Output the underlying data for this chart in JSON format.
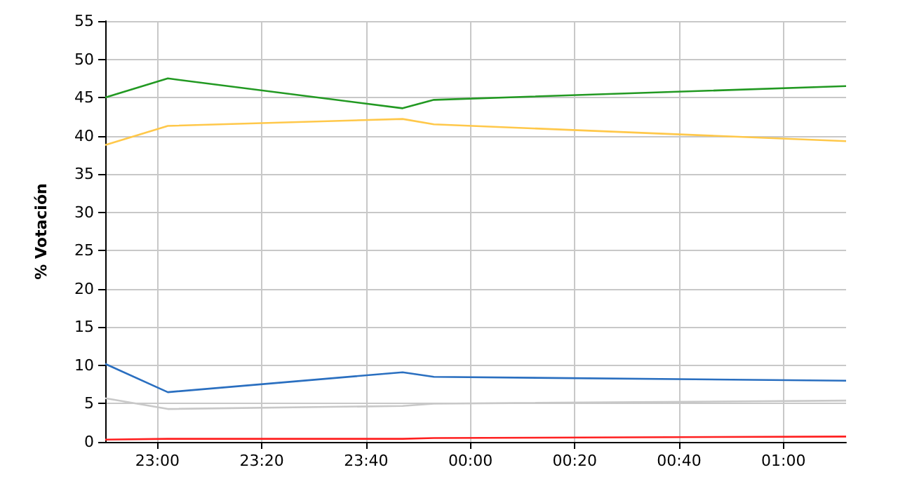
{
  "chart_data": {
    "type": "line",
    "ylabel": "% Votación",
    "x": [
      "2000-01-01T22:50",
      "2000-01-01T23:02",
      "2000-01-01T23:47",
      "2000-01-01T23:53",
      "2000-01-02T01:12"
    ],
    "xlim": [
      "2000-01-01T22:50",
      "2000-01-02T01:12"
    ],
    "xticks": [
      {
        "value": "2000-01-01T23:00",
        "label": "23:00"
      },
      {
        "value": "2000-01-01T23:20",
        "label": "23:20"
      },
      {
        "value": "2000-01-01T23:40",
        "label": "23:40"
      },
      {
        "value": "2000-01-02T00:00",
        "label": "00:00"
      },
      {
        "value": "2000-01-02T00:20",
        "label": "00:20"
      },
      {
        "value": "2000-01-02T00:40",
        "label": "00:40"
      },
      {
        "value": "2000-01-02T01:00",
        "label": "01:00"
      }
    ],
    "ylim": [
      0,
      55
    ],
    "yticks": [
      0,
      5,
      10,
      15,
      20,
      25,
      30,
      35,
      40,
      45,
      50,
      55
    ],
    "grid": true,
    "marker": "none",
    "series": [
      {
        "color": "#229922",
        "values": [
          45,
          47.5,
          43.6,
          44.7,
          46.5
        ]
      },
      {
        "color": "#ffc84a",
        "values": [
          38.8,
          41.3,
          42.2,
          41.5,
          39.3
        ]
      },
      {
        "color": "#2a6fc0",
        "values": [
          10.2,
          6.5,
          9.1,
          8.5,
          8.0
        ]
      },
      {
        "color": "#c8c8c8",
        "values": [
          5.7,
          4.3,
          4.7,
          5.0,
          5.4
        ]
      },
      {
        "color": "#ff2020",
        "values": [
          0.3,
          0.4,
          0.4,
          0.5,
          0.7
        ]
      }
    ]
  }
}
